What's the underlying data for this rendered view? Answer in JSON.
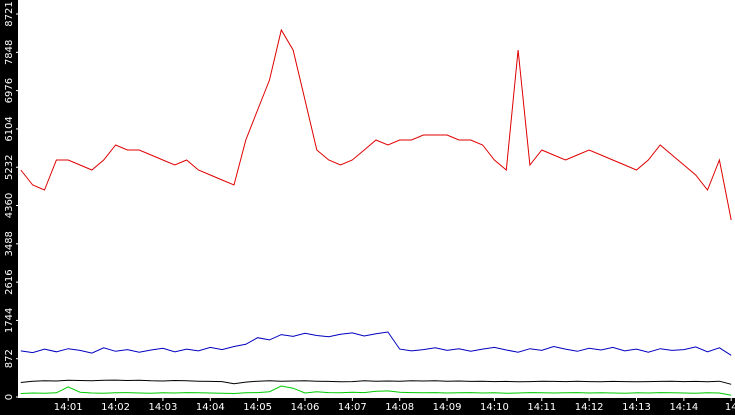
{
  "chart_data": {
    "type": "line",
    "x": [
      0,
      0.25,
      0.5,
      0.75,
      1,
      1.25,
      1.5,
      1.75,
      2,
      2.25,
      2.5,
      2.75,
      3,
      3.25,
      3.5,
      3.75,
      4,
      4.25,
      4.5,
      4.75,
      5,
      5.25,
      5.5,
      5.75,
      6,
      6.25,
      6.5,
      6.75,
      7,
      7.25,
      7.5,
      7.75,
      8,
      8.25,
      8.5,
      8.75,
      9,
      9.25,
      9.5,
      9.75,
      10,
      10.25,
      10.5,
      10.75,
      11,
      11.25,
      11.5,
      11.75,
      12,
      12.25,
      12.5,
      12.75,
      13,
      13.25,
      13.5,
      13.75,
      14,
      14.25,
      14.5,
      14.75,
      15
    ],
    "xlim": [
      -0.06,
      15.08
    ],
    "xticks": [
      {
        "value": 1,
        "label": "14:01"
      },
      {
        "value": 2,
        "label": "14:02"
      },
      {
        "value": 3,
        "label": "14:03"
      },
      {
        "value": 4,
        "label": "14:04"
      },
      {
        "value": 5,
        "label": "14:05"
      },
      {
        "value": 6,
        "label": "14:06"
      },
      {
        "value": 7,
        "label": "14:07"
      },
      {
        "value": 8,
        "label": "14:08"
      },
      {
        "value": 9,
        "label": "14:09"
      },
      {
        "value": 10,
        "label": "14:10"
      },
      {
        "value": 11,
        "label": "14:11"
      },
      {
        "value": 12,
        "label": "14:12"
      },
      {
        "value": 13,
        "label": "14:13"
      },
      {
        "value": 14,
        "label": "14:14"
      },
      {
        "value": 15,
        "label": "14"
      }
    ],
    "ylim": [
      0,
      8721
    ],
    "yticks": [
      0,
      872,
      1744,
      2616,
      3488,
      4360,
      5232,
      6104,
      6976,
      7848,
      8721
    ],
    "series": [
      {
        "color": "#e00000",
        "values": [
          5169,
          4827,
          4713,
          5396,
          5396,
          5283,
          5169,
          5396,
          5738,
          5624,
          5624,
          5510,
          5396,
          5283,
          5396,
          5169,
          5055,
          4941,
          4827,
          5852,
          6535,
          7218,
          8357,
          7901,
          6763,
          5624,
          5396,
          5283,
          5396,
          5624,
          5852,
          5738,
          5852,
          5852,
          5966,
          5966,
          5966,
          5852,
          5852,
          5738,
          5396,
          5169,
          7900,
          5283,
          5624,
          5510,
          5396,
          5510,
          5624,
          5510,
          5396,
          5283,
          5169,
          5396,
          5738,
          5510,
          5283,
          5055,
          4713,
          5396,
          4030
        ]
      },
      {
        "color": "#0000c0",
        "values": [
          1050,
          1010,
          1090,
          1030,
          1100,
          1060,
          1000,
          1120,
          1040,
          1080,
          1020,
          1070,
          1110,
          1030,
          1090,
          1050,
          1130,
          1080,
          1150,
          1200,
          1350,
          1300,
          1420,
          1380,
          1450,
          1400,
          1370,
          1430,
          1460,
          1390,
          1440,
          1480,
          1090,
          1050,
          1080,
          1120,
          1060,
          1100,
          1040,
          1090,
          1130,
          1070,
          1020,
          1100,
          1060,
          1150,
          1090,
          1040,
          1110,
          1070,
          1130,
          1050,
          1090,
          1020,
          1100,
          1060,
          1080,
          1140,
          1030,
          1120,
          950
        ]
      },
      {
        "color": "#000000",
        "values": [
          330,
          360,
          370,
          365,
          380,
          375,
          370,
          380,
          385,
          375,
          380,
          370,
          365,
          375,
          370,
          360,
          355,
          350,
          300,
          340,
          360,
          370,
          360,
          365,
          370,
          360,
          355,
          345,
          350,
          370,
          360,
          365,
          360,
          370,
          365,
          370,
          360,
          365,
          355,
          360,
          350,
          355,
          345,
          350,
          360,
          355,
          350,
          360,
          350,
          345,
          355,
          350,
          345,
          350,
          355,
          360,
          350,
          355,
          345,
          360,
          290
        ]
      },
      {
        "color": "#00cc00",
        "values": [
          80,
          90,
          85,
          95,
          230,
          110,
          90,
          85,
          95,
          100,
          90,
          85,
          95,
          90,
          100,
          95,
          90,
          85,
          80,
          95,
          100,
          120,
          250,
          200,
          90,
          120,
          100,
          95,
          110,
          100,
          130,
          140,
          110,
          100,
          95,
          100,
          90,
          95,
          100,
          90,
          95,
          85,
          90,
          100,
          95,
          90,
          95,
          100,
          90,
          95,
          90,
          85,
          95,
          90,
          100,
          95,
          90,
          85,
          95,
          90,
          40
        ]
      }
    ]
  }
}
